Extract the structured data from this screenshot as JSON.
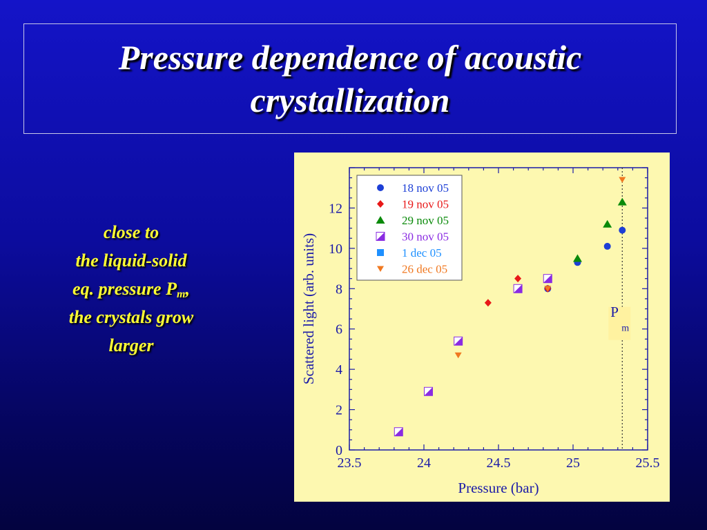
{
  "slide": {
    "title": "Pressure dependence of acoustic crystallization",
    "note": {
      "line1": "close to",
      "line2": "the liquid-solid",
      "line3_prefix": "eq. pressure P",
      "line3_sub": "m",
      "line3_suffix": ",",
      "line4": "the crystals grow",
      "line5": "larger"
    }
  },
  "colors": {
    "background": "#0c0c9e",
    "title_text": "#ffffff",
    "note_text": "#ffff33",
    "chart_panel": "#fdf8b0",
    "axis": "#1a1aa8"
  },
  "chart_data": {
    "type": "scatter",
    "xlabel": "Pressure (bar)",
    "ylabel": "Scattered light (arb. units)",
    "xlim": [
      23.5,
      25.5
    ],
    "ylim": [
      0,
      14
    ],
    "x_ticks": [
      23.5,
      24,
      24.5,
      25,
      25.5
    ],
    "x_tick_labels": [
      "23.5",
      "24",
      "24.5",
      "25",
      "25.5"
    ],
    "y_ticks": [
      0,
      2,
      4,
      6,
      8,
      10,
      12
    ],
    "y_tick_labels": [
      "0",
      "2",
      "4",
      "6",
      "8",
      "10",
      "12"
    ],
    "legend_position": "top-left",
    "series": [
      {
        "name": "18 nov 05",
        "marker": "circle",
        "color": "#1d3fd6",
        "points": [
          {
            "x": 24.83,
            "y": 8.0
          },
          {
            "x": 25.03,
            "y": 9.3
          },
          {
            "x": 25.23,
            "y": 10.1
          },
          {
            "x": 25.33,
            "y": 10.9
          }
        ]
      },
      {
        "name": "19 nov 05",
        "marker": "diamond",
        "color": "#e81818",
        "points": [
          {
            "x": 24.43,
            "y": 7.3
          },
          {
            "x": 24.63,
            "y": 8.5
          },
          {
            "x": 24.83,
            "y": 8.0
          }
        ]
      },
      {
        "name": "29 nov 05",
        "marker": "triangle-up",
        "color": "#0a8a0a",
        "points": [
          {
            "x": 25.03,
            "y": 9.5
          },
          {
            "x": 25.23,
            "y": 11.2
          },
          {
            "x": 25.33,
            "y": 12.3
          }
        ]
      },
      {
        "name": "30 nov 05",
        "marker": "half-square",
        "color": "#8a2be2",
        "points": [
          {
            "x": 23.83,
            "y": 0.9
          },
          {
            "x": 24.03,
            "y": 2.9
          },
          {
            "x": 24.23,
            "y": 5.4
          },
          {
            "x": 24.63,
            "y": 8.0
          },
          {
            "x": 24.83,
            "y": 8.5
          }
        ]
      },
      {
        "name": "1 dec 05",
        "marker": "square",
        "color": "#1e90ff",
        "points": []
      },
      {
        "name": "26 dec 05",
        "marker": "triangle-down",
        "color": "#f07820",
        "points": [
          {
            "x": 24.23,
            "y": 4.7
          },
          {
            "x": 24.83,
            "y": 8.0
          },
          {
            "x": 25.33,
            "y": 13.4
          }
        ]
      }
    ],
    "annotations": [
      {
        "text": "P",
        "subscript": "m",
        "x": 25.33,
        "line": "vertical-dotted"
      }
    ]
  }
}
